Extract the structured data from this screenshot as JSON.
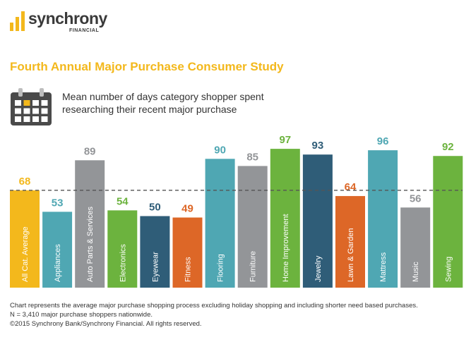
{
  "header": {
    "brand": "synchrony",
    "brand_sub": "FINANCIAL",
    "study_title": "Fourth Annual Major Purchase Consumer Study",
    "subtitle_lines": [
      "Mean number of days category shopper spent",
      "researching their recent major purchase"
    ],
    "icon": "calendar-icon"
  },
  "colors": {
    "brand_yellow": "#f3b81c",
    "teal": "#4fa7b3",
    "gray": "#939598",
    "green": "#6cb33e",
    "navy": "#2f5d78",
    "orange": "#dd6727"
  },
  "chart_data": {
    "type": "bar",
    "title": "Mean number of days category shopper spent researching their recent major purchase",
    "xlabel": "",
    "ylabel": "",
    "ylim": [
      0,
      100
    ],
    "reference_line": {
      "value": 68,
      "style": "dashed"
    },
    "grid": false,
    "legend": "none",
    "categories": [
      "All Cat. Average",
      "Appliances",
      "Auto Parts & Services",
      "Electronics",
      "Eyewear",
      "Fitness",
      "Flooring",
      "Furniture",
      "Home Improvement",
      "Jewelry",
      "Lawn & Garden",
      "Mattress",
      "Music",
      "Sewing"
    ],
    "values": [
      68,
      53,
      89,
      54,
      50,
      49,
      90,
      85,
      97,
      93,
      64,
      96,
      56,
      92
    ],
    "bar_colors": [
      "#f3b81c",
      "#4fa7b3",
      "#939598",
      "#6cb33e",
      "#2f5d78",
      "#dd6727",
      "#4fa7b3",
      "#939598",
      "#6cb33e",
      "#2f5d78",
      "#dd6727",
      "#4fa7b3",
      "#939598",
      "#6cb33e"
    ]
  },
  "footnote": [
    "Chart represents the average major purchase shopping process excluding holiday shopping and including shorter need based purchases.",
    "N = 3,410 major purchase shoppers nationwide.",
    "©2015 Synchrony Bank/Synchrony Financial. All rights reserved."
  ]
}
